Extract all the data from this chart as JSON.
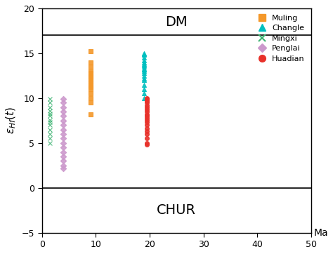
{
  "title_dm": "DM",
  "title_chur": "CHUR",
  "xlabel": "Ma",
  "ylabel": "epsilon_Hf(t)",
  "xlim": [
    0,
    50
  ],
  "ylim": [
    -5,
    20
  ],
  "dm_line": 17,
  "chur_line": 0,
  "xticks": [
    0,
    10,
    20,
    30,
    40,
    50
  ],
  "yticks": [
    -5,
    0,
    5,
    10,
    15,
    20
  ],
  "series": {
    "Muling": {
      "color": "#F4982A",
      "marker": "s",
      "x": [
        9,
        9,
        9,
        9,
        9,
        9,
        9,
        9,
        9,
        9,
        9,
        9,
        9,
        9,
        9,
        9
      ],
      "y": [
        8.2,
        9.5,
        10.0,
        10.5,
        11.0,
        11.2,
        11.5,
        11.8,
        12.0,
        12.3,
        12.5,
        12.8,
        13.0,
        13.5,
        14.0,
        15.2
      ]
    },
    "Changle": {
      "color": "#00BFBF",
      "marker": "^",
      "x": [
        19,
        19,
        19,
        19,
        19,
        19,
        19,
        19,
        19,
        19,
        19,
        19,
        19,
        19,
        19,
        19,
        19,
        19,
        19,
        19
      ],
      "y": [
        10.0,
        10.5,
        11.0,
        11.5,
        12.0,
        12.2,
        12.5,
        12.8,
        13.0,
        13.2,
        13.5,
        13.8,
        14.0,
        14.2,
        14.5,
        14.8,
        14.9,
        15.0,
        13.3,
        13.7
      ]
    },
    "Mingxi": {
      "color": "#3CB371",
      "marker": "x",
      "x": [
        1.5,
        1.5,
        1.5,
        1.5,
        1.5,
        1.5,
        1.5,
        1.5,
        1.5,
        1.5,
        1.5,
        1.5,
        1.5
      ],
      "y": [
        5.0,
        5.5,
        6.0,
        6.5,
        7.0,
        7.3,
        7.6,
        8.0,
        8.3,
        8.6,
        9.0,
        9.5,
        9.9
      ]
    },
    "Penglai": {
      "color": "#CC99CC",
      "marker": "D",
      "x": [
        4,
        4,
        4,
        4,
        4,
        4,
        4,
        4,
        4,
        4,
        4,
        4,
        4,
        4,
        4,
        4,
        4
      ],
      "y": [
        2.2,
        2.5,
        3.0,
        3.5,
        4.0,
        4.5,
        5.0,
        5.5,
        6.0,
        6.5,
        7.0,
        7.5,
        8.0,
        8.5,
        9.0,
        9.5,
        9.9
      ]
    },
    "Huadian": {
      "color": "#E8312A",
      "marker": "o",
      "x": [
        19.5,
        19.5,
        19.5,
        19.5,
        19.5,
        19.5,
        19.5,
        19.5,
        19.5,
        19.5,
        19.5,
        19.5,
        19.5,
        19.5,
        19.5,
        19.5,
        19.5,
        19.5,
        19.5,
        19.5,
        19.5
      ],
      "y": [
        4.8,
        5.0,
        5.5,
        6.0,
        6.3,
        6.6,
        7.0,
        7.3,
        7.6,
        7.8,
        8.0,
        8.2,
        8.5,
        8.7,
        9.0,
        9.2,
        9.5,
        9.7,
        9.8,
        9.9,
        10.0
      ]
    }
  },
  "background_color": "#ffffff",
  "legend_marker_sizes": 7,
  "scatter_size": 18
}
